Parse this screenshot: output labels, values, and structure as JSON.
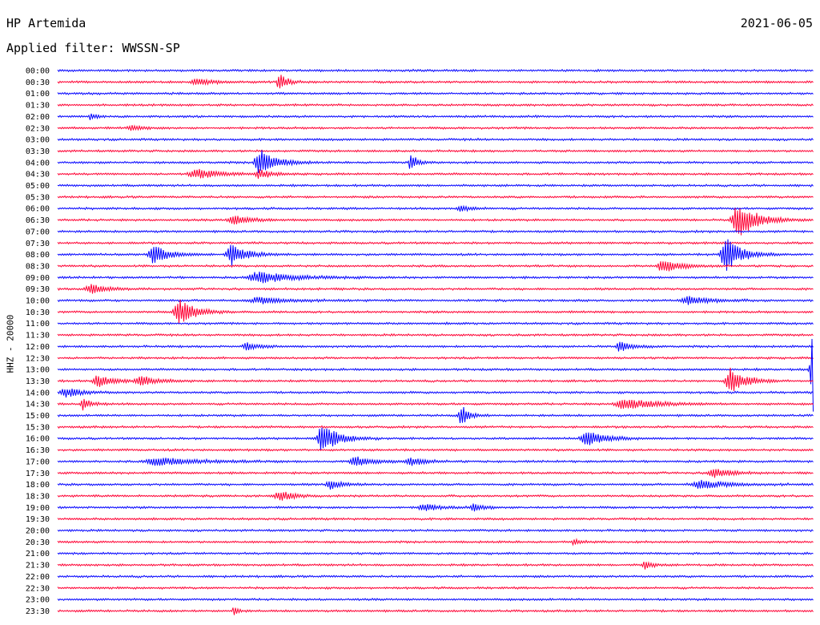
{
  "header": {
    "station": "HP Artemida",
    "date": "2021-06-05",
    "filter_label": "Applied filter: WWSSN-SP",
    "channel_label": "HHZ - 20000"
  },
  "colors": {
    "even_line": "#0000ff",
    "odd_line": "#ff0033"
  },
  "chart_data": {
    "type": "line",
    "title": "HP Artemida",
    "ylabel": "HHZ - 20000",
    "y_tick_labels": [
      "00:00",
      "00:30",
      "01:00",
      "01:30",
      "02:00",
      "02:30",
      "03:00",
      "03:30",
      "04:00",
      "04:30",
      "05:00",
      "05:30",
      "06:00",
      "06:30",
      "07:00",
      "07:30",
      "08:00",
      "08:30",
      "09:00",
      "09:30",
      "10:00",
      "10:30",
      "11:00",
      "11:30",
      "12:00",
      "12:30",
      "13:00",
      "13:30",
      "14:00",
      "14:30",
      "15:00",
      "15:30",
      "16:00",
      "16:30",
      "17:00",
      "17:30",
      "18:00",
      "18:30",
      "19:00",
      "19:30",
      "20:00",
      "20:30",
      "21:00",
      "21:30",
      "22:00",
      "22:30",
      "23:00",
      "23:30"
    ],
    "x_range_minutes": [
      0,
      30
    ],
    "events": [
      {
        "row": 1,
        "minute": 5.5,
        "amp": 5,
        "width": 0.8
      },
      {
        "row": 1,
        "minute": 8.8,
        "amp": 12,
        "width": 0.4
      },
      {
        "row": 4,
        "minute": 1.3,
        "amp": 4,
        "width": 0.3
      },
      {
        "row": 5,
        "minute": 2.9,
        "amp": 3,
        "width": 0.6
      },
      {
        "row": 8,
        "minute": 8.0,
        "amp": 18,
        "width": 0.8
      },
      {
        "row": 8,
        "minute": 14.0,
        "amp": 14,
        "width": 0.3
      },
      {
        "row": 9,
        "minute": 5.5,
        "amp": 6,
        "width": 1.2
      },
      {
        "row": 9,
        "minute": 8.0,
        "amp": 6,
        "width": 0.6
      },
      {
        "row": 12,
        "minute": 16.0,
        "amp": 4,
        "width": 0.5
      },
      {
        "row": 13,
        "minute": 7.0,
        "amp": 5,
        "width": 1.0
      },
      {
        "row": 13,
        "minute": 27.0,
        "amp": 22,
        "width": 1.0
      },
      {
        "row": 16,
        "minute": 3.8,
        "amp": 12,
        "width": 0.8
      },
      {
        "row": 16,
        "minute": 6.9,
        "amp": 14,
        "width": 0.8
      },
      {
        "row": 16,
        "minute": 26.5,
        "amp": 22,
        "width": 0.8
      },
      {
        "row": 17,
        "minute": 24.0,
        "amp": 9,
        "width": 0.8
      },
      {
        "row": 18,
        "minute": 8.0,
        "amp": 7,
        "width": 1.8
      },
      {
        "row": 19,
        "minute": 1.3,
        "amp": 6,
        "width": 0.8
      },
      {
        "row": 20,
        "minute": 8.0,
        "amp": 4,
        "width": 1.5
      },
      {
        "row": 20,
        "minute": 25.0,
        "amp": 5,
        "width": 1.2
      },
      {
        "row": 21,
        "minute": 4.8,
        "amp": 18,
        "width": 0.8
      },
      {
        "row": 24,
        "minute": 7.5,
        "amp": 5,
        "width": 0.6
      },
      {
        "row": 24,
        "minute": 22.3,
        "amp": 6,
        "width": 0.6
      },
      {
        "row": 26,
        "minute": 30.0,
        "amp": 55,
        "width": 0.6
      },
      {
        "row": 27,
        "minute": 1.6,
        "amp": 8,
        "width": 0.8
      },
      {
        "row": 27,
        "minute": 3.3,
        "amp": 7,
        "width": 0.8
      },
      {
        "row": 27,
        "minute": 26.7,
        "amp": 16,
        "width": 0.8
      },
      {
        "row": 28,
        "minute": 0.3,
        "amp": 6,
        "width": 0.8
      },
      {
        "row": 29,
        "minute": 1.0,
        "amp": 9,
        "width": 0.4
      },
      {
        "row": 29,
        "minute": 22.5,
        "amp": 7,
        "width": 1.5
      },
      {
        "row": 30,
        "minute": 16.0,
        "amp": 14,
        "width": 0.4
      },
      {
        "row": 32,
        "minute": 10.5,
        "amp": 20,
        "width": 0.8
      },
      {
        "row": 32,
        "minute": 21.0,
        "amp": 9,
        "width": 1.0
      },
      {
        "row": 34,
        "minute": 4.0,
        "amp": 5,
        "width": 2.0
      },
      {
        "row": 34,
        "minute": 11.8,
        "amp": 7,
        "width": 0.8
      },
      {
        "row": 34,
        "minute": 14.0,
        "amp": 5,
        "width": 0.8
      },
      {
        "row": 35,
        "minute": 26.0,
        "amp": 7,
        "width": 0.8
      },
      {
        "row": 36,
        "minute": 10.8,
        "amp": 6,
        "width": 0.6
      },
      {
        "row": 36,
        "minute": 25.5,
        "amp": 5,
        "width": 1.5
      },
      {
        "row": 37,
        "minute": 8.8,
        "amp": 6,
        "width": 0.8
      },
      {
        "row": 38,
        "minute": 14.5,
        "amp": 5,
        "width": 0.8
      },
      {
        "row": 38,
        "minute": 16.5,
        "amp": 4,
        "width": 0.6
      },
      {
        "row": 41,
        "minute": 20.5,
        "amp": 4,
        "width": 0.4
      },
      {
        "row": 43,
        "minute": 23.3,
        "amp": 5,
        "width": 0.4
      },
      {
        "row": 47,
        "minute": 7.0,
        "amp": 8,
        "width": 0.2
      }
    ]
  }
}
